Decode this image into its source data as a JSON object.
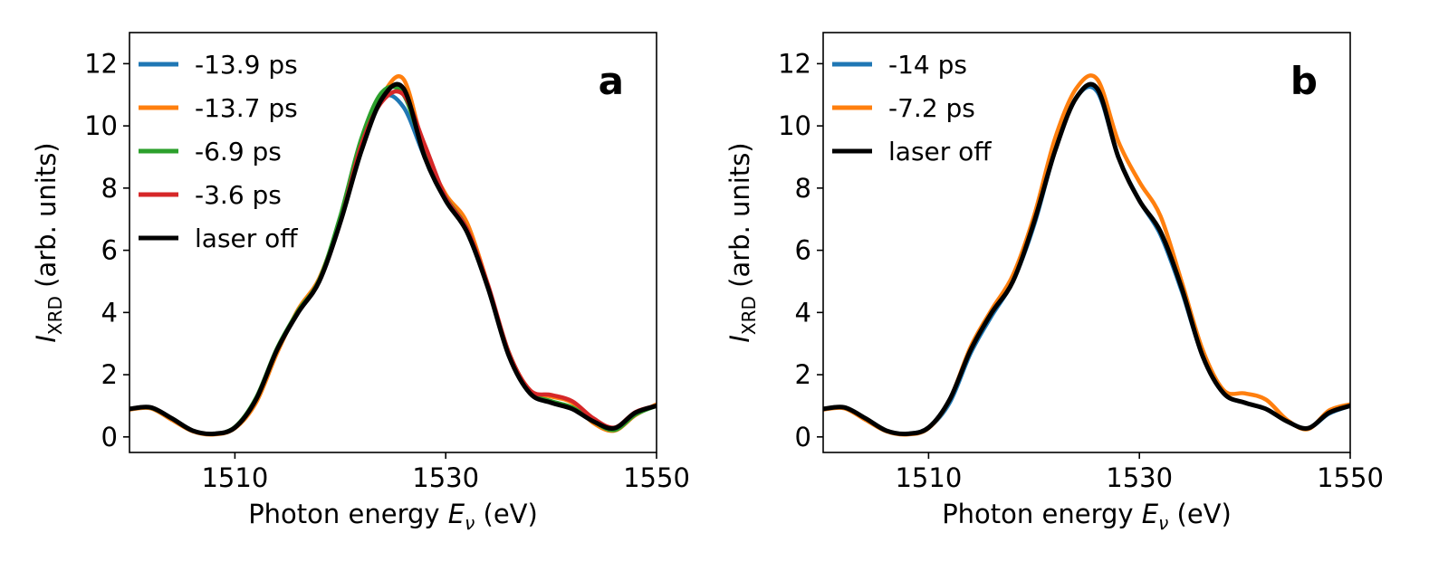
{
  "chart_data": [
    {
      "type": "line",
      "panel_label": "a",
      "xlabel_prefix": "Photon energy ",
      "xlabel_var": "E",
      "xlabel_sub": "ν",
      "xlabel_unit": " (eV)",
      "ylabel_var": "I",
      "ylabel_sub": "XRD",
      "ylabel_unit": " (arb. units)",
      "xlim": [
        1500,
        1550
      ],
      "ylim": [
        -0.5,
        13
      ],
      "xticks": [
        1510,
        1530,
        1550
      ],
      "yticks": [
        0,
        2,
        4,
        6,
        8,
        10,
        12
      ],
      "legend_position": "upper-left",
      "x": [
        1500,
        1502,
        1504,
        1506,
        1508,
        1510,
        1512,
        1514,
        1516,
        1518,
        1520,
        1522,
        1524,
        1526,
        1528,
        1530,
        1532,
        1534,
        1536,
        1538,
        1540,
        1542,
        1544,
        1546,
        1548,
        1550
      ],
      "series": [
        {
          "name": "-13.9 ps",
          "color": "#1f77b4",
          "values": [
            0.9,
            0.95,
            0.6,
            0.2,
            0.1,
            0.3,
            1.2,
            2.8,
            4.0,
            5.0,
            6.9,
            9.3,
            10.9,
            10.6,
            9.0,
            7.7,
            6.6,
            4.8,
            2.6,
            1.4,
            1.1,
            0.9,
            0.5,
            0.25,
            0.75,
            1.0
          ]
        },
        {
          "name": "-13.7 ps",
          "color": "#ff7f0e",
          "values": [
            0.88,
            0.92,
            0.55,
            0.18,
            0.08,
            0.28,
            1.1,
            2.7,
            4.1,
            5.1,
            7.0,
            9.5,
            11.0,
            11.5,
            9.2,
            7.8,
            6.9,
            4.9,
            2.7,
            1.5,
            1.3,
            1.1,
            0.45,
            0.2,
            0.7,
            1.05
          ]
        },
        {
          "name": "-6.9 ps",
          "color": "#2ca02c",
          "values": [
            0.9,
            0.94,
            0.6,
            0.2,
            0.1,
            0.32,
            1.25,
            2.85,
            4.05,
            5.05,
            7.1,
            9.6,
            11.1,
            11.0,
            9.1,
            7.7,
            6.7,
            4.85,
            2.7,
            1.45,
            1.15,
            0.95,
            0.5,
            0.22,
            0.72,
            1.0
          ]
        },
        {
          "name": "-3.6 ps",
          "color": "#d62728",
          "values": [
            0.9,
            0.95,
            0.6,
            0.2,
            0.1,
            0.3,
            1.2,
            2.8,
            4.0,
            5.0,
            6.9,
            9.4,
            10.8,
            11.0,
            9.4,
            7.7,
            6.7,
            4.9,
            2.7,
            1.5,
            1.35,
            1.15,
            0.6,
            0.3,
            0.8,
            1.0
          ]
        },
        {
          "name": "laser off",
          "color": "#000000",
          "values": [
            0.9,
            0.95,
            0.6,
            0.2,
            0.1,
            0.3,
            1.2,
            2.8,
            4.0,
            5.0,
            6.9,
            9.2,
            10.9,
            11.2,
            9.0,
            7.6,
            6.6,
            4.8,
            2.6,
            1.4,
            1.1,
            0.9,
            0.5,
            0.28,
            0.78,
            1.0
          ]
        }
      ]
    },
    {
      "type": "line",
      "panel_label": "b",
      "xlabel_prefix": "Photon energy ",
      "xlabel_var": "E",
      "xlabel_sub": "ν",
      "xlabel_unit": " (eV)",
      "ylabel_var": "I",
      "ylabel_sub": "XRD",
      "ylabel_unit": " (arb. units)",
      "xlim": [
        1500,
        1550
      ],
      "ylim": [
        -0.5,
        13
      ],
      "xticks": [
        1510,
        1530,
        1550
      ],
      "yticks": [
        0,
        2,
        4,
        6,
        8,
        10,
        12
      ],
      "legend_position": "upper-left",
      "x": [
        1500,
        1502,
        1504,
        1506,
        1508,
        1510,
        1512,
        1514,
        1516,
        1518,
        1520,
        1522,
        1524,
        1526,
        1528,
        1530,
        1532,
        1534,
        1536,
        1538,
        1540,
        1542,
        1544,
        1546,
        1548,
        1550
      ],
      "series": [
        {
          "name": "-14 ps",
          "color": "#1f77b4",
          "values": [
            0.9,
            0.95,
            0.6,
            0.2,
            0.1,
            0.3,
            1.1,
            2.7,
            3.9,
            5.0,
            6.8,
            9.2,
            10.9,
            11.1,
            9.0,
            7.6,
            6.5,
            4.7,
            2.6,
            1.4,
            1.1,
            0.9,
            0.5,
            0.28,
            0.75,
            1.0
          ]
        },
        {
          "name": "-7.2 ps",
          "color": "#ff7f0e",
          "values": [
            0.88,
            0.92,
            0.55,
            0.18,
            0.08,
            0.28,
            1.2,
            2.9,
            4.1,
            5.2,
            7.1,
            9.6,
            11.2,
            11.5,
            9.5,
            8.2,
            7.1,
            5.0,
            2.8,
            1.5,
            1.4,
            1.2,
            0.55,
            0.25,
            0.85,
            1.05
          ]
        },
        {
          "name": "laser off",
          "color": "#000000",
          "values": [
            0.9,
            0.95,
            0.6,
            0.2,
            0.1,
            0.3,
            1.2,
            2.8,
            4.0,
            5.0,
            6.9,
            9.2,
            10.9,
            11.2,
            9.0,
            7.6,
            6.6,
            4.8,
            2.6,
            1.4,
            1.1,
            0.9,
            0.5,
            0.28,
            0.78,
            1.0
          ]
        }
      ]
    }
  ]
}
